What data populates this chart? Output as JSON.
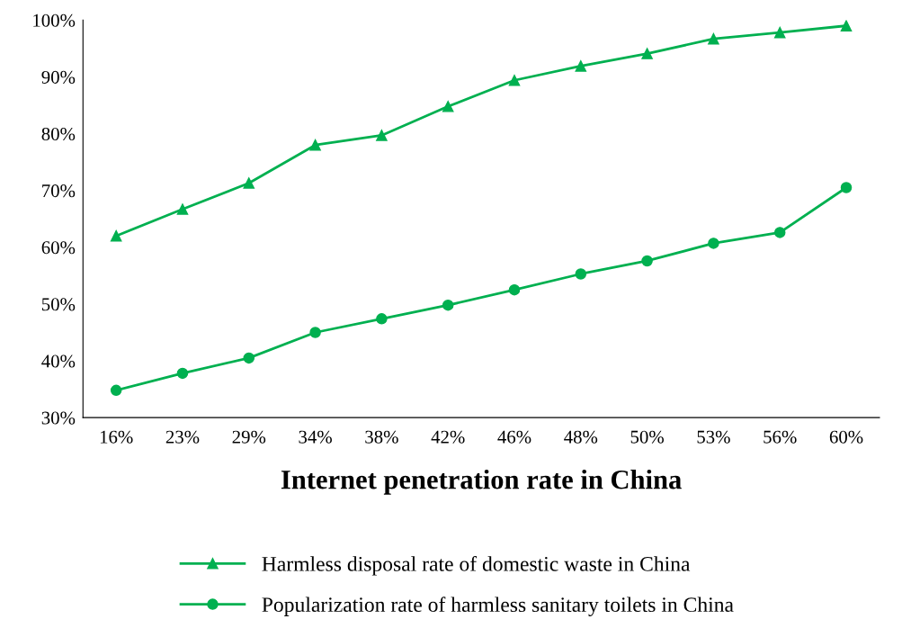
{
  "chart_data": {
    "type": "line",
    "xlabel": "Internet penetration rate in China",
    "categories": [
      "16%",
      "23%",
      "29%",
      "34%",
      "38%",
      "42%",
      "46%",
      "48%",
      "50%",
      "53%",
      "56%",
      "60%"
    ],
    "series": [
      {
        "name": "Harmless disposal rate of domestic waste in China",
        "color": "#00b050",
        "marker": "triangle",
        "values": [
          62.0,
          66.7,
          71.3,
          78.0,
          79.7,
          84.8,
          89.4,
          91.9,
          94.1,
          96.7,
          97.8,
          99.0
        ]
      },
      {
        "name": "Popularization rate of harmless sanitary toilets in China",
        "color": "#00b050",
        "marker": "circle",
        "values": [
          34.8,
          37.8,
          40.5,
          45.0,
          47.4,
          49.8,
          52.5,
          55.3,
          57.6,
          60.7,
          62.6,
          70.5
        ]
      }
    ],
    "ylim": [
      30,
      100
    ],
    "yticks": [
      {
        "value": 30,
        "label": "30%"
      },
      {
        "value": 40,
        "label": "40%"
      },
      {
        "value": 50,
        "label": "50%"
      },
      {
        "value": 60,
        "label": "60%"
      },
      {
        "value": 70,
        "label": "70%"
      },
      {
        "value": 80,
        "label": "80%"
      },
      {
        "value": 90,
        "label": "90%"
      },
      {
        "value": 100,
        "label": "100%"
      }
    ],
    "grid": false,
    "legend": "bottom",
    "line_style": "solid"
  }
}
